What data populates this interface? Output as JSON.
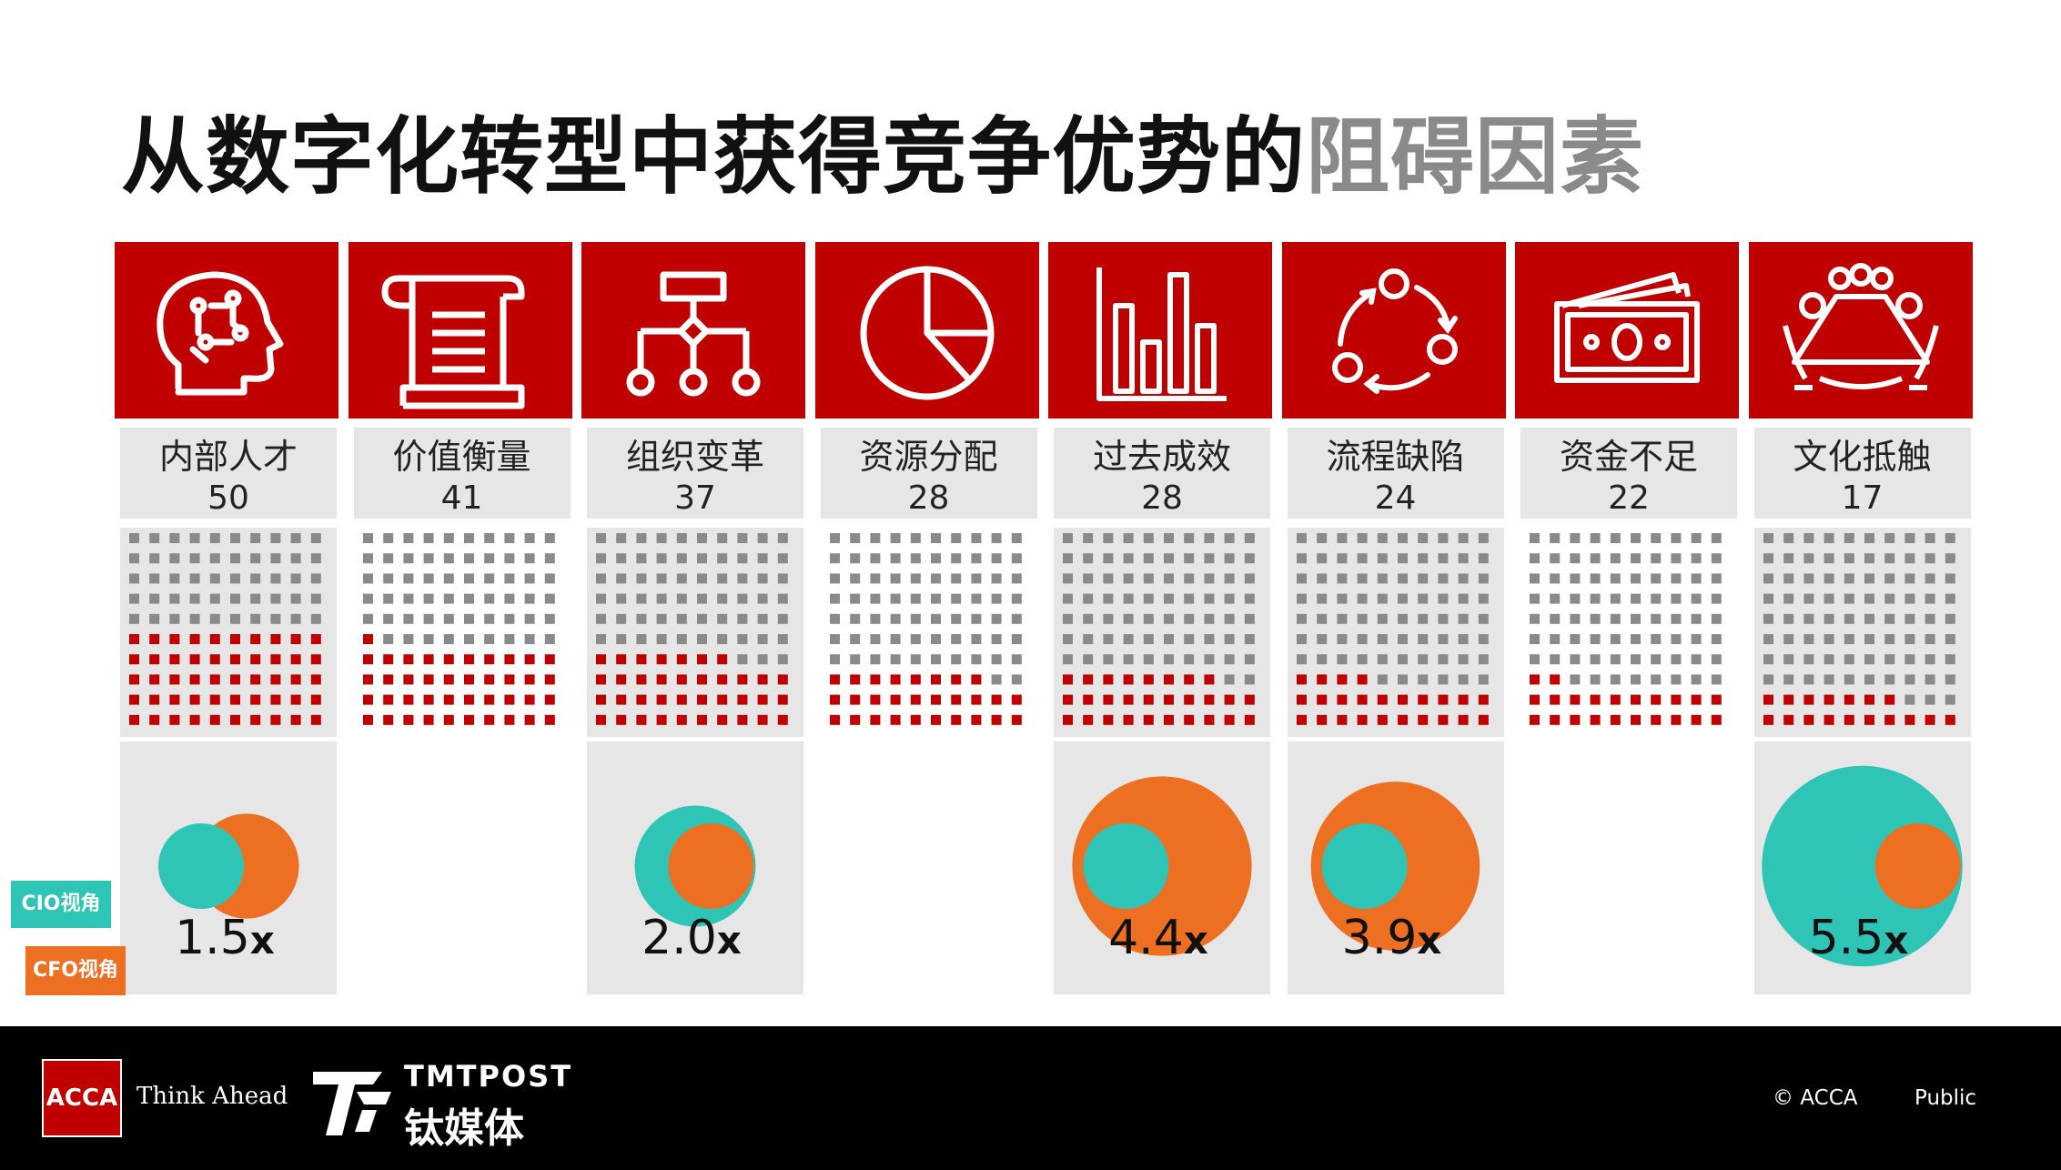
{
  "title": {
    "main": "从数字化转型中获得竞争优势的",
    "highlight": "阻碍因素"
  },
  "legend": {
    "cio": "CIO视角",
    "cfo": "CFO视角"
  },
  "colors": {
    "red": "#c00000",
    "grey_dot": "#8a8a8a",
    "cio": "#2ec4b6",
    "cfo": "#ec6f22"
  },
  "chart_data": {
    "type": "waffle+bubble",
    "categories": [
      {
        "name": "内部人才",
        "value": 50,
        "icon": "brain-head-icon",
        "ratio": "1.5x",
        "cio": 1.0,
        "cfo": 1.5
      },
      {
        "name": "价值衡量",
        "value": 41,
        "icon": "scroll-document-icon",
        "ratio": null
      },
      {
        "name": "组织变革",
        "value": 37,
        "icon": "org-chart-icon",
        "ratio": "2.0x",
        "cio": 2.0,
        "cfo": 1.0
      },
      {
        "name": "资源分配",
        "value": 28,
        "icon": "pie-chart-icon",
        "ratio": null
      },
      {
        "name": "过去成效",
        "value": 28,
        "icon": "bar-chart-icon",
        "ratio": "4.4x",
        "cio": 1.0,
        "cfo": 4.4
      },
      {
        "name": "流程缺陷",
        "value": 24,
        "icon": "process-cycle-icon",
        "ratio": "3.9x",
        "cio": 1.0,
        "cfo": 3.9
      },
      {
        "name": "资金不足",
        "value": 22,
        "icon": "money-bills-icon",
        "ratio": null
      },
      {
        "name": "文化抵触",
        "value": 17,
        "icon": "meeting-table-icon",
        "ratio": "5.5x",
        "cio": 5.5,
        "cfo": 1.0
      }
    ]
  },
  "footer": {
    "acca_logo": "ACCA",
    "tagline": "Think Ahead",
    "tmt_en": "TMTPOST",
    "tmt_cn": "钛媒体",
    "copyright": "© ACCA",
    "classification": "Public"
  }
}
